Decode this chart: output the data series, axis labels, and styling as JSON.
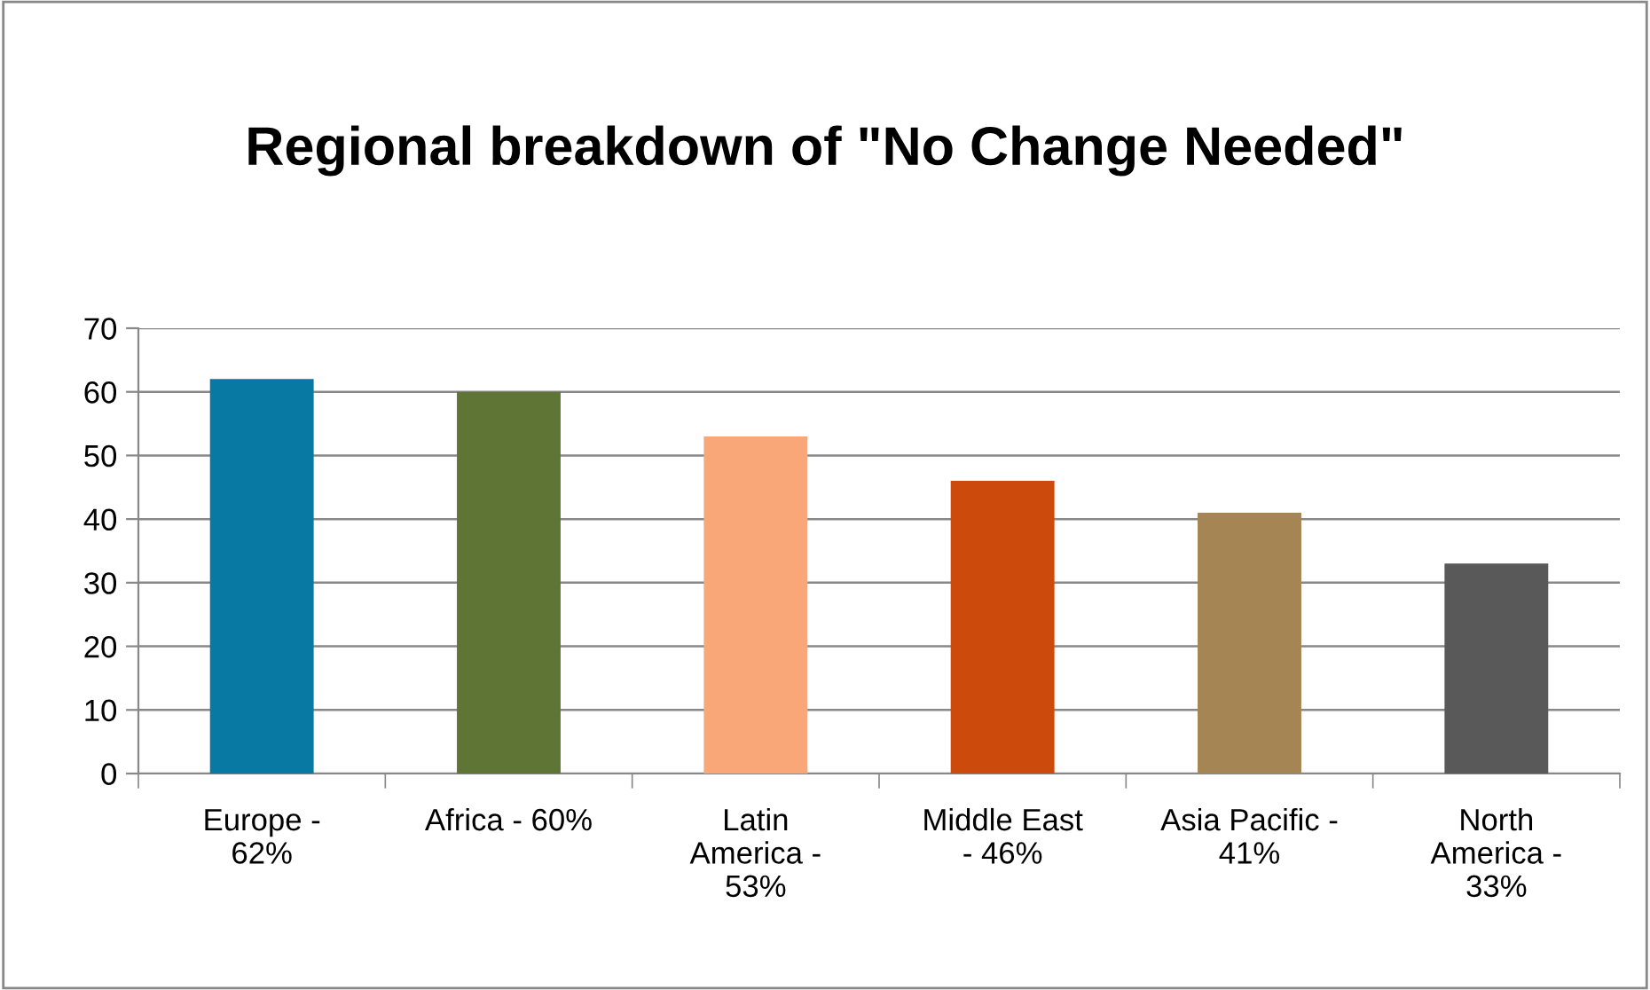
{
  "chart_data": {
    "type": "bar",
    "title": "Regional breakdown of \"No Change Needed\"",
    "categories": [
      "Europe -\n62%",
      "Africa - 60%",
      "Latin\nAmerica -\n53%",
      "Middle East\n- 46%",
      "Asia Pacific -\n41%",
      "North\nAmerica -\n33%"
    ],
    "values": [
      62,
      60,
      53,
      46,
      41,
      33
    ],
    "colors": [
      "#0779a3",
      "#5f7535",
      "#f9a679",
      "#cc4b0c",
      "#a58554",
      "#595959"
    ],
    "ylim": [
      0,
      70
    ],
    "yticks": [
      0,
      10,
      20,
      30,
      40,
      50,
      60,
      70
    ],
    "grid": "y"
  }
}
